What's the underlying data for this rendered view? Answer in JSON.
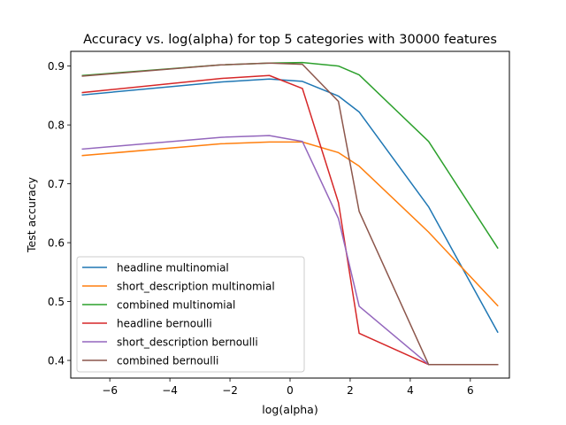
{
  "chart_data": {
    "type": "line",
    "title": "Accuracy vs. log(alpha) for top 5 categories with 30000 features",
    "xlabel": "log(alpha)",
    "ylabel": "Test accuracy",
    "xlim": [
      -7.3,
      7.3
    ],
    "ylim": [
      0.37,
      0.925
    ],
    "xticks": [
      -6,
      -4,
      -2,
      0,
      2,
      4,
      6
    ],
    "yticks": [
      0.4,
      0.5,
      0.6,
      0.7,
      0.8,
      0.9
    ],
    "xtick_labels": [
      "−6",
      "−4",
      "−2",
      "0",
      "2",
      "4",
      "6"
    ],
    "ytick_labels": [
      "0.4",
      "0.5",
      "0.6",
      "0.7",
      "0.8",
      "0.9"
    ],
    "grid": false,
    "legend_position": "lower-left",
    "x": [
      -6.91,
      -2.3,
      -0.69,
      0.41,
      1.61,
      2.3,
      4.61,
      6.91
    ],
    "series": [
      {
        "name": "headline multinomial",
        "color": "#1f77b4",
        "values": [
          0.851,
          0.873,
          0.878,
          0.874,
          0.849,
          0.822,
          0.661,
          0.448
        ]
      },
      {
        "name": "short_description multinomial",
        "color": "#ff7f0e",
        "values": [
          0.748,
          0.768,
          0.771,
          0.771,
          0.753,
          0.73,
          0.618,
          0.493
        ]
      },
      {
        "name": "combined multinomial",
        "color": "#2ca02c",
        "values": [
          0.884,
          0.902,
          0.905,
          0.906,
          0.9,
          0.885,
          0.772,
          0.591
        ]
      },
      {
        "name": "headline bernoulli",
        "color": "#d62728",
        "values": [
          0.855,
          0.879,
          0.884,
          0.862,
          0.668,
          0.446,
          0.393,
          0.393
        ]
      },
      {
        "name": "short_description bernoulli",
        "color": "#9467bd",
        "values": [
          0.759,
          0.779,
          0.782,
          0.772,
          0.641,
          0.492,
          0.393,
          0.393
        ]
      },
      {
        "name": "combined bernoulli",
        "color": "#8c564b",
        "values": [
          0.883,
          0.902,
          0.905,
          0.903,
          0.84,
          0.653,
          0.393,
          0.393
        ]
      }
    ]
  }
}
